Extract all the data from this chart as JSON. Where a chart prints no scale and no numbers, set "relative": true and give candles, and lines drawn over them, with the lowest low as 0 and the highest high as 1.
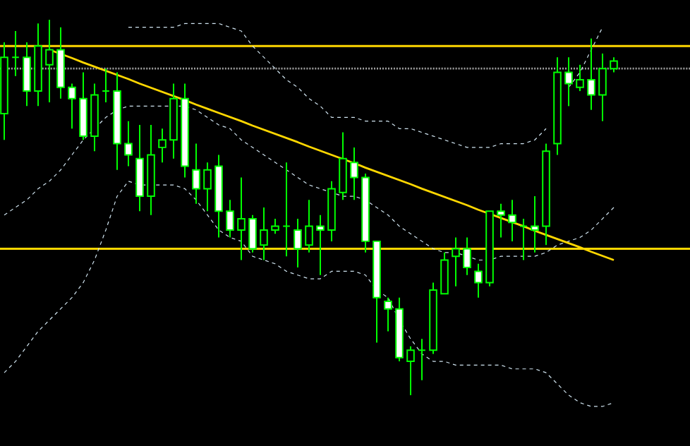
{
  "chart_data": {
    "type": "candlestick",
    "relative": true,
    "categories": [
      null,
      null,
      null,
      null,
      null,
      null,
      null,
      null,
      null,
      null,
      null,
      null,
      null,
      null,
      null,
      null,
      null,
      null,
      null,
      null,
      null,
      null,
      null,
      null,
      null,
      null,
      null,
      null,
      null,
      null,
      null,
      null,
      null,
      null,
      null,
      null,
      null,
      null,
      null,
      null,
      null,
      null,
      null,
      null,
      null,
      null,
      null,
      null,
      null,
      null,
      null,
      null,
      null,
      null,
      null
    ],
    "series": [
      {
        "color": "#00ff00",
        "ohlc": [
          [
            0.75,
            0.94,
            0.68,
            0.9
          ],
          [
            0.9,
            0.97,
            0.85,
            0.9
          ],
          [
            0.9,
            0.94,
            0.77,
            0.81
          ],
          [
            0.81,
            0.99,
            0.77,
            0.93
          ],
          [
            0.88,
            1.0,
            0.78,
            0.92
          ],
          [
            0.92,
            0.98,
            0.79,
            0.82
          ],
          [
            0.82,
            0.83,
            0.71,
            0.79
          ],
          [
            0.79,
            0.86,
            0.68,
            0.69
          ],
          [
            0.69,
            0.83,
            0.65,
            0.8
          ],
          [
            0.81,
            0.87,
            0.78,
            0.81
          ],
          [
            0.81,
            0.86,
            0.6,
            0.67
          ],
          [
            0.67,
            0.73,
            0.61,
            0.64
          ],
          [
            0.63,
            0.72,
            0.49,
            0.53
          ],
          [
            0.53,
            0.72,
            0.48,
            0.64
          ],
          [
            0.66,
            0.71,
            0.62,
            0.68
          ],
          [
            0.68,
            0.83,
            0.63,
            0.79
          ],
          [
            0.79,
            0.83,
            0.58,
            0.61
          ],
          [
            0.6,
            0.67,
            0.51,
            0.55
          ],
          [
            0.55,
            0.62,
            0.49,
            0.6
          ],
          [
            0.61,
            0.64,
            0.42,
            0.49
          ],
          [
            0.49,
            0.52,
            0.42,
            0.44
          ],
          [
            0.44,
            0.58,
            0.36,
            0.47
          ],
          [
            0.47,
            0.48,
            0.38,
            0.39
          ],
          [
            0.4,
            0.5,
            0.36,
            0.44
          ],
          [
            0.44,
            0.47,
            0.43,
            0.45
          ],
          [
            0.45,
            0.62,
            0.37,
            0.45
          ],
          [
            0.44,
            0.47,
            0.34,
            0.39
          ],
          [
            0.4,
            0.52,
            0.38,
            0.45
          ],
          [
            0.45,
            0.48,
            0.32,
            0.44
          ],
          [
            0.44,
            0.57,
            0.41,
            0.55
          ],
          [
            0.54,
            0.7,
            0.52,
            0.63
          ],
          [
            0.62,
            0.66,
            0.52,
            0.58
          ],
          [
            0.58,
            0.59,
            0.38,
            0.41
          ],
          [
            0.41,
            0.41,
            0.14,
            0.26
          ],
          [
            0.25,
            0.26,
            0.17,
            0.23
          ],
          [
            0.23,
            0.26,
            0.09,
            0.1
          ],
          [
            0.09,
            0.13,
            0.0,
            0.12
          ],
          [
            0.12,
            0.15,
            0.04,
            0.12
          ],
          [
            0.12,
            0.3,
            0.11,
            0.28
          ],
          [
            0.27,
            0.38,
            0.27,
            0.36
          ],
          [
            0.37,
            0.42,
            0.29,
            0.39
          ],
          [
            0.39,
            0.42,
            0.32,
            0.34
          ],
          [
            0.33,
            0.35,
            0.26,
            0.3
          ],
          [
            0.3,
            0.49,
            0.29,
            0.49
          ],
          [
            0.49,
            0.51,
            0.42,
            0.48
          ],
          [
            0.48,
            0.52,
            0.41,
            0.46
          ],
          [
            0.45,
            0.47,
            0.36,
            0.45
          ],
          [
            0.45,
            0.53,
            0.38,
            0.44
          ],
          [
            0.45,
            0.67,
            0.4,
            0.65
          ],
          [
            0.67,
            0.9,
            0.64,
            0.86
          ],
          [
            0.86,
            0.9,
            0.77,
            0.83
          ],
          [
            0.82,
            0.88,
            0.81,
            0.84
          ],
          [
            0.84,
            0.95,
            0.76,
            0.8
          ],
          [
            0.8,
            0.91,
            0.73,
            0.87
          ],
          [
            0.87,
            0.9,
            0.86,
            0.89
          ]
        ]
      },
      {
        "type": "line",
        "line_style": "dashed",
        "color": "#d0e4f0",
        "values": [
          null,
          null,
          null,
          null,
          null,
          null,
          null,
          null,
          null,
          null,
          null,
          0.98,
          0.98,
          0.98,
          0.98,
          0.98,
          0.99,
          0.99,
          0.99,
          0.99,
          0.98,
          0.97,
          0.93,
          0.9,
          0.87,
          0.84,
          0.82,
          0.79,
          0.77,
          0.74,
          0.74,
          0.74,
          0.73,
          0.73,
          0.73,
          0.71,
          0.71,
          0.7,
          0.69,
          0.68,
          0.67,
          0.66,
          0.66,
          0.66,
          0.67,
          0.67,
          0.67,
          0.68,
          0.71,
          null,
          0.82,
          0.86,
          0.92,
          0.98,
          null
        ]
      },
      {
        "type": "line",
        "line_style": "dashed",
        "color": "#d0e4f0",
        "values": [
          0.48,
          0.5,
          0.52,
          0.55,
          0.57,
          0.6,
          0.64,
          0.68,
          0.71,
          0.74,
          0.76,
          0.77,
          0.77,
          0.77,
          0.77,
          0.77,
          0.77,
          0.76,
          0.74,
          0.72,
          0.71,
          0.68,
          0.66,
          0.64,
          0.62,
          0.6,
          0.58,
          0.56,
          0.55,
          0.54,
          0.53,
          0.53,
          0.52,
          0.5,
          0.48,
          0.45,
          0.43,
          0.41,
          0.39,
          0.38,
          0.38,
          0.37,
          0.36,
          0.36,
          0.37,
          0.37,
          0.37,
          0.37,
          0.38,
          0.4,
          0.41,
          0.42,
          0.44,
          0.47,
          0.5
        ]
      },
      {
        "type": "line",
        "line_style": "dashed",
        "color": "#d0e4f0",
        "values": [
          0.06,
          0.09,
          0.13,
          0.17,
          0.2,
          0.23,
          0.26,
          0.3,
          0.36,
          0.44,
          0.53,
          0.57,
          0.56,
          0.56,
          0.56,
          0.56,
          0.55,
          0.52,
          0.48,
          0.44,
          0.42,
          0.41,
          0.37,
          0.36,
          0.35,
          0.33,
          0.32,
          0.31,
          0.31,
          0.33,
          0.33,
          0.33,
          0.32,
          0.28,
          0.26,
          0.2,
          0.15,
          0.11,
          0.09,
          0.09,
          0.08,
          0.08,
          0.08,
          0.08,
          0.08,
          0.07,
          0.07,
          0.07,
          0.06,
          0.03,
          0.0,
          -0.02,
          -0.03,
          -0.03,
          -0.02
        ]
      },
      {
        "type": "line",
        "line_style": "solid",
        "color": "#ffd700",
        "values": [
          null,
          null,
          null,
          null,
          0.92,
          0.909,
          0.898,
          0.886,
          0.875,
          0.864,
          0.853,
          0.842,
          0.83,
          0.819,
          0.808,
          0.797,
          0.786,
          0.774,
          0.763,
          0.752,
          0.741,
          0.73,
          0.718,
          0.707,
          0.696,
          0.685,
          0.674,
          0.662,
          0.651,
          0.64,
          0.629,
          0.618,
          0.606,
          0.595,
          0.584,
          0.573,
          0.562,
          0.55,
          0.539,
          0.528,
          0.517,
          0.506,
          0.494,
          0.483,
          0.472,
          0.461,
          0.45,
          0.438,
          0.427,
          0.416,
          0.405,
          0.394,
          0.382,
          0.371,
          0.36
        ]
      }
    ],
    "ref_lines": [
      {
        "axis": "y",
        "value": 0.93,
        "color": "#ffd700",
        "line_style": "solid"
      },
      {
        "axis": "y",
        "value": 0.87,
        "color": "#a0a0a0",
        "line_style": "dotted"
      },
      {
        "axis": "y",
        "value": 0.39,
        "color": "#ffd700",
        "line_style": "solid"
      }
    ]
  }
}
